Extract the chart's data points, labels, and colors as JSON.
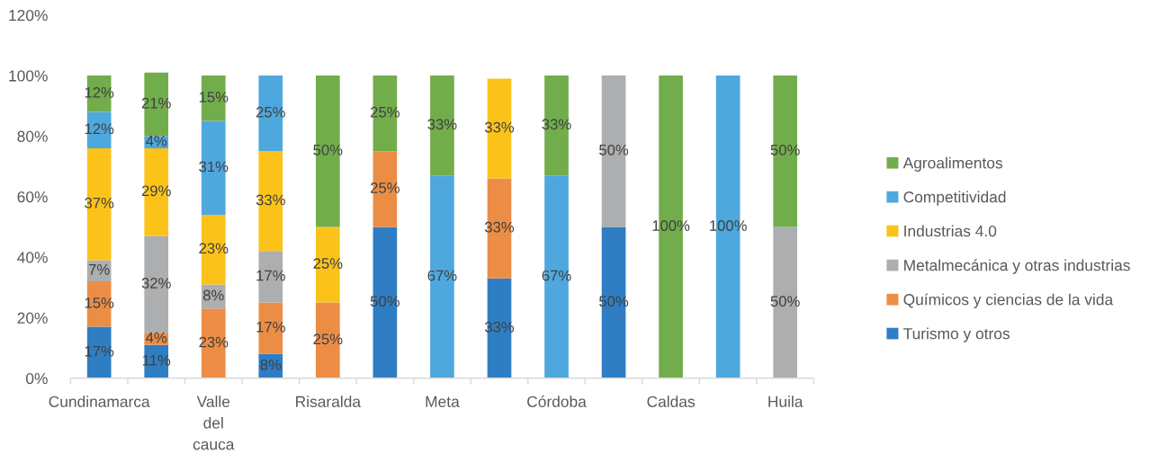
{
  "chart_data": {
    "type": "bar",
    "stacked": true,
    "categories": [
      "Cundinamarca",
      null,
      "Valle del cauca",
      null,
      "Risaralda",
      null,
      "Meta",
      null,
      "Córdoba",
      null,
      "Caldas",
      null,
      "Huila"
    ],
    "series": [
      {
        "name": "Turismo y otros",
        "color": "#2f7ec4",
        "values": [
          17,
          11,
          null,
          8,
          null,
          50,
          null,
          33,
          null,
          50,
          null,
          null,
          null
        ],
        "value_labels": [
          "17%",
          "11%",
          null,
          "8%",
          null,
          "50%",
          null,
          "33%",
          null,
          "50%",
          null,
          null,
          null
        ]
      },
      {
        "name": "Químicos y ciencias de la vida",
        "color": "#ec8d46",
        "values": [
          15,
          4,
          23,
          17,
          25,
          25,
          null,
          33,
          null,
          null,
          null,
          null,
          null
        ],
        "value_labels": [
          "15%",
          "4%",
          "23%",
          "17%",
          "25%",
          "25%",
          null,
          "33%",
          null,
          null,
          null,
          null,
          null
        ]
      },
      {
        "name": "Metalmecánica y otras industrias",
        "color": "#acaeb0",
        "values": [
          7,
          32,
          8,
          17,
          null,
          null,
          null,
          null,
          null,
          50,
          null,
          null,
          50
        ],
        "value_labels": [
          "7%",
          "32%",
          "8%",
          "17%",
          null,
          null,
          null,
          null,
          null,
          "50%",
          null,
          null,
          "50%"
        ]
      },
      {
        "name": "Industrias 4.0",
        "color": "#fbc31a",
        "values": [
          37,
          29,
          23,
          33,
          25,
          null,
          null,
          33,
          null,
          null,
          null,
          null,
          null
        ],
        "value_labels": [
          "37%",
          "29%",
          "23%",
          "33%",
          "25%",
          null,
          null,
          "33%",
          null,
          null,
          null,
          null,
          null
        ]
      },
      {
        "name": "Competitividad",
        "color": "#4ea8de",
        "values": [
          12,
          4,
          31,
          25,
          null,
          null,
          67,
          null,
          67,
          null,
          null,
          100,
          null
        ],
        "value_labels": [
          "12%",
          "4%",
          "31%",
          "25%",
          null,
          null,
          "67%",
          null,
          "67%",
          null,
          null,
          "100%",
          null
        ]
      },
      {
        "name": "Agroalimentos",
        "color": "#72ad4c",
        "values": [
          12,
          21,
          15,
          null,
          50,
          25,
          33,
          null,
          33,
          null,
          100,
          null,
          50
        ],
        "value_labels": [
          "12%",
          "21%",
          "15%",
          null,
          "50%",
          "25%",
          "33%",
          null,
          "33%",
          null,
          "100%",
          null,
          "50%"
        ]
      }
    ],
    "ylim": [
      0,
      120
    ],
    "yticks": [
      {
        "value": 0,
        "label": "0%"
      },
      {
        "value": 20,
        "label": "20%"
      },
      {
        "value": 40,
        "label": "40%"
      },
      {
        "value": 60,
        "label": "60%"
      },
      {
        "value": 80,
        "label": "80%"
      },
      {
        "value": 100,
        "label": "100%"
      },
      {
        "value": 120,
        "label": "120%"
      }
    ],
    "legend": "right",
    "grid": false
  }
}
